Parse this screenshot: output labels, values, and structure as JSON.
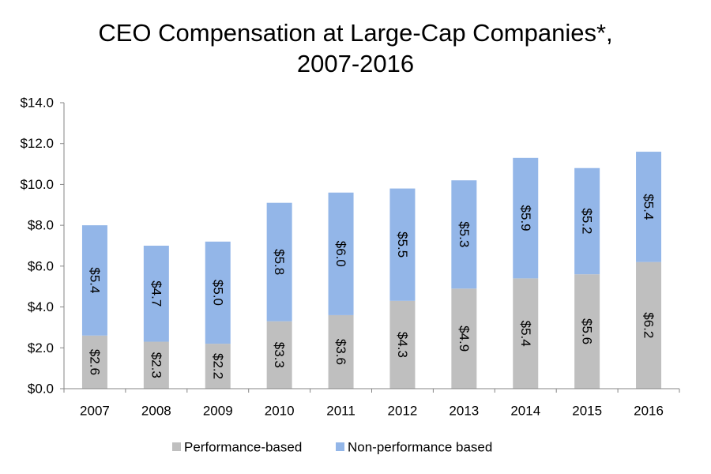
{
  "chart_data": {
    "type": "bar",
    "stacked": true,
    "title_line1": "CEO Compensation at Large-Cap Companies*,",
    "title_line2": "2007-2016",
    "xlabel": "",
    "ylabel": "",
    "ylim": [
      0,
      14
    ],
    "yticks": [
      "$0.0",
      "$2.0",
      "$4.0",
      "$6.0",
      "$8.0",
      "$10.0",
      "$12.0",
      "$14.0"
    ],
    "grid": false,
    "legend_position": "bottom",
    "categories": [
      "2007",
      "2008",
      "2009",
      "2010",
      "2011",
      "2012",
      "2013",
      "2014",
      "2015",
      "2016"
    ],
    "series": [
      {
        "name": "Performance-based",
        "color": "#bfbfbf",
        "values": [
          2.6,
          2.3,
          2.2,
          3.3,
          3.6,
          4.3,
          4.9,
          5.4,
          5.6,
          6.2
        ],
        "labels": [
          "$2.6",
          "$2.3",
          "$2.2",
          "$3.3",
          "$3.6",
          "$4.3",
          "$4.9",
          "$5.4",
          "$5.6",
          "$6.2"
        ]
      },
      {
        "name": "Non-performance based",
        "color": "#93b6e8",
        "values": [
          5.4,
          4.7,
          5.0,
          5.8,
          6.0,
          5.5,
          5.3,
          5.9,
          5.2,
          5.4
        ],
        "labels": [
          "$5.4",
          "$4.7",
          "$5.0",
          "$5.8",
          "$6.0",
          "$5.5",
          "$5.3",
          "$5.9",
          "$5.2",
          "$5.4"
        ]
      }
    ]
  }
}
